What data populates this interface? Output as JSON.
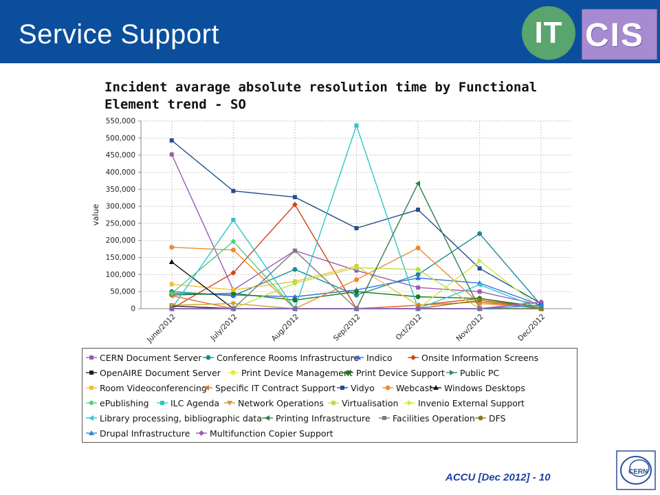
{
  "slide": {
    "title": "Service Support",
    "footer": "ACCU [Dec 2012] - 10",
    "logo_it": "IT",
    "logo_cis": "CIS",
    "logo_cern": "CERN"
  },
  "colors": {
    "header": "#0b4f9c",
    "it_logo": "#5aa46e",
    "cis_logo": "#a78bd0",
    "footer_text": "#1f3fa8"
  },
  "chart_data": {
    "type": "line",
    "title": "Incident avarage absolute resolution time by Functional Element trend - SO",
    "xlabel": "",
    "ylabel": "value",
    "categories": [
      "June/2012",
      "July/2012",
      "Aug/2012",
      "Sep/2012",
      "Oct/2012",
      "Nov/2012",
      "Dec/2012"
    ],
    "ylim": [
      0,
      550000
    ],
    "yticks": [
      0,
      50000,
      100000,
      150000,
      200000,
      250000,
      300000,
      350000,
      400000,
      450000,
      500000,
      550000
    ],
    "ytick_labels": [
      "0",
      "50,000",
      "100,000",
      "150,000",
      "200,000",
      "250,000",
      "300,000",
      "350,000",
      "400,000",
      "450,000",
      "500,000",
      "550,000"
    ],
    "grid": true,
    "legend_position": "bottom",
    "series": [
      {
        "name": "CERN Document Server",
        "color": "#9b59b6",
        "marker": "square",
        "values": [
          452000,
          55000,
          170000,
          112000,
          62000,
          50000,
          10000
        ]
      },
      {
        "name": "Conference Rooms Infrastructure",
        "color": "#1a8a96",
        "marker": "circle",
        "values": [
          50000,
          38000,
          115000,
          40000,
          100000,
          220000,
          10000
        ]
      },
      {
        "name": "Indico",
        "color": "#2f6fe0",
        "marker": "triangle-up",
        "values": [
          45000,
          40000,
          35000,
          55000,
          90000,
          75000,
          10000
        ]
      },
      {
        "name": "Onsite Information Screens",
        "color": "#d0421b",
        "marker": "diamond",
        "values": [
          0,
          105000,
          305000,
          0,
          10000,
          30000,
          0
        ]
      },
      {
        "name": "OpenAIRE Document Server",
        "color": "#222222",
        "marker": "square",
        "values": [
          8000,
          0,
          0,
          0,
          0,
          0,
          0
        ]
      },
      {
        "name": "Print Device Management",
        "color": "#e8e84a",
        "marker": "circle",
        "values": [
          0,
          0,
          0,
          0,
          0,
          0,
          0
        ]
      },
      {
        "name": "Print Device Support",
        "color": "#1e7a1e",
        "marker": "circle",
        "values": [
          40000,
          45000,
          25000,
          50000,
          35000,
          30000,
          5000
        ]
      },
      {
        "name": "Public PC",
        "color": "#3a8a5c",
        "marker": "triangle-right",
        "values": [
          0,
          0,
          0,
          0,
          0,
          0,
          0
        ]
      },
      {
        "name": "Room Videoconferencing",
        "color": "#f2c12e",
        "marker": "square",
        "values": [
          72000,
          55000,
          80000,
          125000,
          10000,
          20000,
          5000
        ]
      },
      {
        "name": "Specific IT Contract Support",
        "color": "#e8702a",
        "marker": "triangle-left",
        "values": [
          38000,
          0,
          0,
          0,
          10000,
          20000,
          0
        ]
      },
      {
        "name": "Vidyo",
        "color": "#1f4e8c",
        "marker": "square",
        "values": [
          493000,
          345000,
          327000,
          236000,
          290000,
          118000,
          15000
        ]
      },
      {
        "name": "Webcast",
        "color": "#f08a2c",
        "marker": "circle",
        "values": [
          180000,
          172000,
          0,
          85000,
          178000,
          15000,
          5000
        ]
      },
      {
        "name": "Windows Desktops",
        "color": "#111111",
        "marker": "triangle-up",
        "values": [
          137000,
          0,
          0,
          0,
          0,
          0,
          0
        ]
      },
      {
        "name": "ePublishing",
        "color": "#4ccf7a",
        "marker": "diamond",
        "values": [
          45000,
          197000,
          0,
          0,
          0,
          0,
          0
        ]
      },
      {
        "name": "ILC Agenda",
        "color": "#2ec4c8",
        "marker": "square",
        "values": [
          0,
          260000,
          0,
          537000,
          0,
          0,
          0
        ]
      },
      {
        "name": "Network Operations",
        "color": "#c9a227",
        "marker": "triangle-down",
        "values": [
          10000,
          15000,
          0,
          0,
          0,
          0,
          0
        ]
      },
      {
        "name": "Virtualisation",
        "color": "#b9e04a",
        "marker": "circle",
        "values": [
          0,
          0,
          75000,
          120000,
          115000,
          0,
          0
        ]
      },
      {
        "name": "Invenio External Support",
        "color": "#c8e84a",
        "marker": "triangle-right",
        "values": [
          0,
          0,
          0,
          0,
          0,
          140000,
          0
        ]
      },
      {
        "name": "Library processing, bibliographic data",
        "color": "#2fc9d6",
        "marker": "triangle-left",
        "values": [
          0,
          0,
          0,
          0,
          0,
          70000,
          0
        ]
      },
      {
        "name": "Printing Infrastructure",
        "color": "#2e7d4a",
        "marker": "triangle-left",
        "values": [
          0,
          0,
          0,
          0,
          367000,
          0,
          0
        ]
      },
      {
        "name": "Facilities Operation",
        "color": "#7a7a7a",
        "marker": "square",
        "values": [
          0,
          0,
          170000,
          0,
          0,
          0,
          0
        ]
      },
      {
        "name": "DFS",
        "color": "#8a7a1a",
        "marker": "circle",
        "values": [
          0,
          0,
          0,
          0,
          0,
          25000,
          0
        ]
      },
      {
        "name": "Drupal Infrastructure",
        "color": "#2a8ae0",
        "marker": "triangle-up",
        "values": [
          0,
          0,
          0,
          0,
          0,
          0,
          10000
        ]
      },
      {
        "name": "Multifunction Copier Support",
        "color": "#9b59b6",
        "marker": "diamond",
        "values": [
          0,
          0,
          0,
          0,
          0,
          0,
          20000
        ]
      }
    ]
  }
}
